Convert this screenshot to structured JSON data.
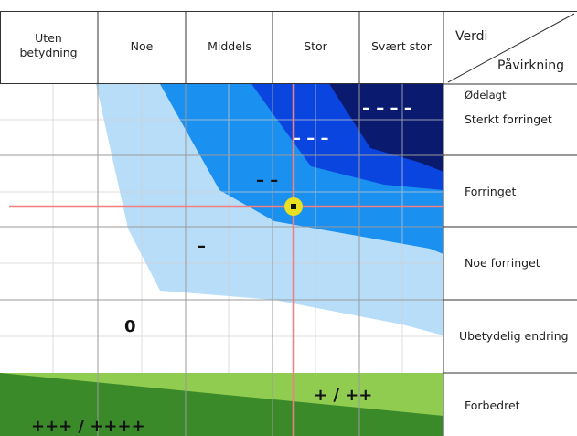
{
  "header": {
    "columns": [
      "Uten betydning",
      "Noe",
      "Middels",
      "Stor",
      "Svært stor"
    ],
    "corner_top": "Verdi",
    "corner_bottom": "Påvirkning"
  },
  "rows": [
    "Ødelagt",
    "Sterkt forringet",
    "Forringet",
    "Noe forringet",
    "Ubetydelig endring",
    "Forbedret"
  ],
  "symbols": {
    "very_negative": "– – – –",
    "strong_negative": "– – –",
    "medium_negative": "– –",
    "small_negative": "–",
    "neutral": "0",
    "positive": "+ / ++",
    "very_positive": "+++ / ++++"
  },
  "colors": {
    "navy": "#0a1a6e",
    "blue": "#0a45e0",
    "mid_blue": "#1a90f0",
    "light_blue": "#b8ddf8",
    "light_green": "#8fcc50",
    "dark_green": "#3a8a2a",
    "crosshair": "#f08080",
    "marker": "#e8e020",
    "grid": "#d0d0d0"
  }
}
